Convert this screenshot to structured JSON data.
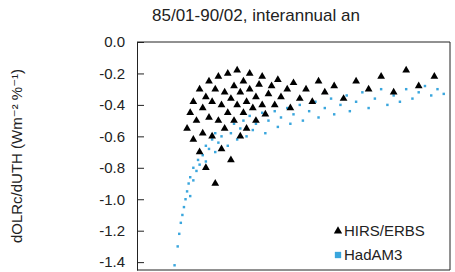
{
  "chart_data": {
    "type": "scatter",
    "title": "85/01-90/02, interannual an",
    "y_label": "dOLRc/dUTH (Wm⁻² %⁻¹)",
    "xlim": [
      0,
      100
    ],
    "ylim": [
      -1.45,
      0
    ],
    "yticks": [
      {
        "value": 0,
        "label": "0.0"
      },
      -0.2,
      -0.4,
      -0.6,
      -0.8,
      {
        "value": -1,
        "label": "-1.0"
      },
      -1.2,
      -1.4
    ],
    "tick_labels": "y",
    "legend": "lower right",
    "series": [
      {
        "name": "HIRS/ERBS",
        "color": "#000000",
        "marker": "triangle",
        "x": [
          16,
          17,
          18,
          18,
          19,
          20,
          20,
          21,
          21,
          22,
          22,
          23,
          23,
          24,
          24,
          25,
          25,
          26,
          26,
          27,
          27,
          28,
          28,
          29,
          29,
          30,
          30,
          31,
          31,
          32,
          32,
          33,
          33,
          34,
          34,
          35,
          35,
          36,
          36,
          37,
          38,
          38,
          39,
          40,
          40,
          41,
          42,
          43,
          44,
          45,
          46,
          48,
          49,
          50,
          52,
          54,
          56,
          58,
          60,
          63,
          66,
          70,
          74,
          78,
          82,
          86,
          90,
          95
        ],
        "values": [
          -0.55,
          -0.45,
          -0.38,
          -0.62,
          -0.5,
          -0.3,
          -0.7,
          -0.42,
          -0.58,
          -0.35,
          -0.8,
          -0.48,
          -0.25,
          -0.6,
          -0.38,
          -0.9,
          -0.3,
          -0.5,
          -0.22,
          -0.68,
          -0.4,
          -0.32,
          -0.55,
          -0.2,
          -0.45,
          -0.75,
          -0.36,
          -0.28,
          -0.5,
          -0.4,
          -0.18,
          -0.6,
          -0.32,
          -0.45,
          -0.25,
          -0.38,
          -0.55,
          -0.3,
          -0.2,
          -0.42,
          -0.35,
          -0.5,
          -0.27,
          -0.4,
          -0.22,
          -0.46,
          -0.33,
          -0.28,
          -0.4,
          -0.24,
          -0.35,
          -0.3,
          -0.42,
          -0.26,
          -0.36,
          -0.3,
          -0.38,
          -0.25,
          -0.32,
          -0.28,
          -0.36,
          -0.25,
          -0.3,
          -0.22,
          -0.32,
          -0.18,
          -0.28,
          -0.22
        ]
      },
      {
        "name": "HadAM3",
        "color": "#3aa6dd",
        "marker": "square",
        "x": [
          12,
          13,
          13.5,
          14,
          14.5,
          15,
          15.5,
          16,
          16.5,
          17,
          17,
          18,
          18,
          19,
          19.5,
          20,
          20,
          21,
          22,
          22,
          23,
          24,
          25,
          25,
          26,
          27,
          28,
          29,
          30,
          31,
          32,
          33,
          34,
          35,
          36,
          37,
          38,
          40,
          41,
          42,
          44,
          45,
          46,
          48,
          49,
          50,
          52,
          53,
          55,
          57,
          58,
          60,
          62,
          63,
          65,
          67,
          68,
          70,
          72,
          74,
          76,
          78,
          80,
          82,
          84,
          86,
          88,
          90,
          92,
          94,
          96,
          98
        ],
        "values": [
          -1.42,
          -1.3,
          -1.22,
          -1.15,
          -1.1,
          -1.05,
          -1.0,
          -0.95,
          -0.9,
          -0.98,
          -0.86,
          -0.88,
          -0.8,
          -0.82,
          -0.75,
          -0.78,
          -0.7,
          -0.72,
          -0.66,
          -0.76,
          -0.68,
          -0.62,
          -0.7,
          -0.58,
          -0.64,
          -0.6,
          -0.55,
          -0.66,
          -0.58,
          -0.52,
          -0.62,
          -0.55,
          -0.5,
          -0.6,
          -0.47,
          -0.56,
          -0.52,
          -0.45,
          -0.58,
          -0.5,
          -0.44,
          -0.54,
          -0.48,
          -0.42,
          -0.52,
          -0.46,
          -0.4,
          -0.5,
          -0.44,
          -0.38,
          -0.48,
          -0.42,
          -0.36,
          -0.46,
          -0.4,
          -0.34,
          -0.44,
          -0.38,
          -0.32,
          -0.42,
          -0.36,
          -0.3,
          -0.4,
          -0.34,
          -0.38,
          -0.3,
          -0.36,
          -0.32,
          -0.28,
          -0.34,
          -0.3,
          -0.33
        ]
      }
    ]
  }
}
